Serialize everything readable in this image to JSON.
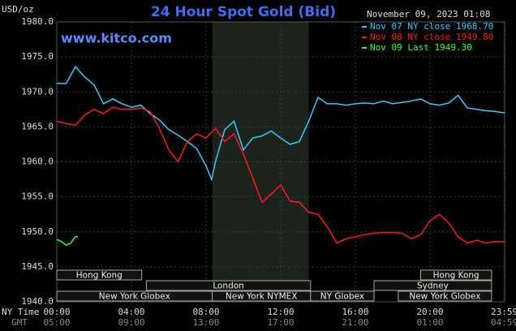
{
  "chart_data": {
    "type": "line",
    "title": "24 Hour Spot Gold (Bid)",
    "subtitle": "www.kitco.com",
    "timestamp": "November 09, 2023 01:08",
    "y_label": "USD/oz",
    "x_label": "NY Time",
    "x2_label": "GMT",
    "ylim": [
      1940,
      1980
    ],
    "yticks": [
      {
        "value": 1940,
        "label": "1940.0"
      },
      {
        "value": 1945,
        "label": "1945.0"
      },
      {
        "value": 1950,
        "label": "1950.0"
      },
      {
        "value": 1955,
        "label": "1955.0"
      },
      {
        "value": 1960,
        "label": "1960.0"
      },
      {
        "value": 1965,
        "label": "1965.0"
      },
      {
        "value": 1970,
        "label": "1970.0"
      },
      {
        "value": 1975,
        "label": "1975.0"
      },
      {
        "value": 1980,
        "label": "1980.0"
      }
    ],
    "xlim": [
      0,
      24
    ],
    "xticks": [
      {
        "value": 0,
        "label": "00:00"
      },
      {
        "value": 4,
        "label": "04:00"
      },
      {
        "value": 8,
        "label": "08:00"
      },
      {
        "value": 12,
        "label": "12:00"
      },
      {
        "value": 16,
        "label": "16:00"
      },
      {
        "value": 20,
        "label": "20:00"
      },
      {
        "value": 23.98,
        "label": "23:59"
      }
    ],
    "gmt_labels": [
      "05:00",
      "09:00",
      "13:00",
      "17:00",
      "21:00",
      "01:00",
      "04:59"
    ],
    "grid": true,
    "highlight_range": [
      8.33,
      13.5
    ],
    "sessions": [
      {
        "label": "Hong Kong",
        "start": 0,
        "end": 4.55,
        "row": 0
      },
      {
        "label": "London",
        "start": 4.8,
        "end": 13.6,
        "row": 1
      },
      {
        "label": "New York Globex",
        "start": 0,
        "end": 8.33,
        "row": 2
      },
      {
        "label": "New York NYMEX",
        "start": 8.33,
        "end": 13.6,
        "row": 2
      },
      {
        "label": "NY Globex",
        "start": 13.6,
        "end": 17.0,
        "row": 2
      },
      {
        "label": "Hong Kong",
        "start": 19.5,
        "end": 23.3,
        "row": 0
      },
      {
        "label": "Sydney",
        "start": 17.0,
        "end": 23.3,
        "row": 1
      },
      {
        "label": "New York Globex",
        "start": 18.3,
        "end": 23.3,
        "row": 2
      }
    ],
    "series": [
      {
        "name": "Nov 07 NY close 1968.70",
        "color": "#33ccff",
        "x": [
          0,
          0.5,
          1,
          1.5,
          2,
          2.5,
          3,
          3.5,
          4,
          4.5,
          5,
          5.5,
          6,
          6.5,
          7,
          7.5,
          8,
          8.3,
          8.5,
          9,
          9.5,
          10,
          10.5,
          11,
          11.5,
          12,
          12.5,
          13,
          13.5,
          14,
          14.5,
          15,
          15.5,
          16,
          16.5,
          17,
          17.5,
          18,
          18.5,
          19,
          19.5,
          20,
          20.5,
          21,
          21.5,
          22,
          22.5,
          23,
          23.5,
          24
        ],
        "values": [
          1971.2,
          1971.2,
          1973.6,
          1972.1,
          1971.0,
          1968.3,
          1969.0,
          1968.3,
          1967.8,
          1968.1,
          1966.9,
          1966.0,
          1964.6,
          1963.8,
          1962.9,
          1961.9,
          1959.4,
          1957.5,
          1960.0,
          1964.6,
          1965.8,
          1961.7,
          1963.4,
          1963.7,
          1964.4,
          1963.4,
          1962.5,
          1962.9,
          1965.8,
          1969.2,
          1968.3,
          1968.3,
          1968.1,
          1968.3,
          1968.4,
          1968.3,
          1968.7,
          1968.3,
          1968.5,
          1968.7,
          1969.0,
          1968.3,
          1968.1,
          1968.4,
          1969.5,
          1967.7,
          1967.5,
          1967.3,
          1967.2,
          1967.0
        ]
      },
      {
        "name": "Nov 08 NY close 1949.80",
        "color": "#ff1a1a",
        "x": [
          0,
          0.5,
          1,
          1.5,
          2,
          2.5,
          3,
          3.5,
          4,
          4.5,
          5,
          5.5,
          6,
          6.5,
          7,
          7.5,
          8,
          8.5,
          9,
          9.5,
          10,
          10.5,
          11,
          11.5,
          12,
          12.5,
          13,
          13.5,
          14,
          14.5,
          15,
          15.5,
          16,
          16.5,
          17,
          17.5,
          18,
          18.5,
          19,
          19.5,
          20,
          20.5,
          21,
          21.5,
          22,
          22.5,
          23,
          23.5,
          24
        ],
        "values": [
          1965.8,
          1965.5,
          1965.2,
          1966.7,
          1967.5,
          1966.9,
          1967.8,
          1967.5,
          1967.5,
          1967.7,
          1967.2,
          1964.8,
          1961.7,
          1960.0,
          1962.9,
          1964.0,
          1963.4,
          1964.8,
          1962.9,
          1964.0,
          1961.1,
          1957.7,
          1954.2,
          1955.4,
          1956.7,
          1954.4,
          1954.2,
          1952.8,
          1952.5,
          1950.7,
          1948.4,
          1949.0,
          1949.3,
          1949.6,
          1949.8,
          1949.9,
          1949.9,
          1949.8,
          1949.0,
          1949.6,
          1951.6,
          1952.5,
          1951.3,
          1949.3,
          1948.4,
          1948.8,
          1948.4,
          1948.6,
          1948.6
        ]
      },
      {
        "name": "Nov 09 Last 1949.30",
        "color": "#33ff33",
        "x": [
          0,
          0.25,
          0.5,
          0.75,
          1,
          1.13
        ],
        "values": [
          1948.9,
          1948.6,
          1948.1,
          1948.4,
          1949.3,
          1949.3
        ]
      }
    ]
  }
}
